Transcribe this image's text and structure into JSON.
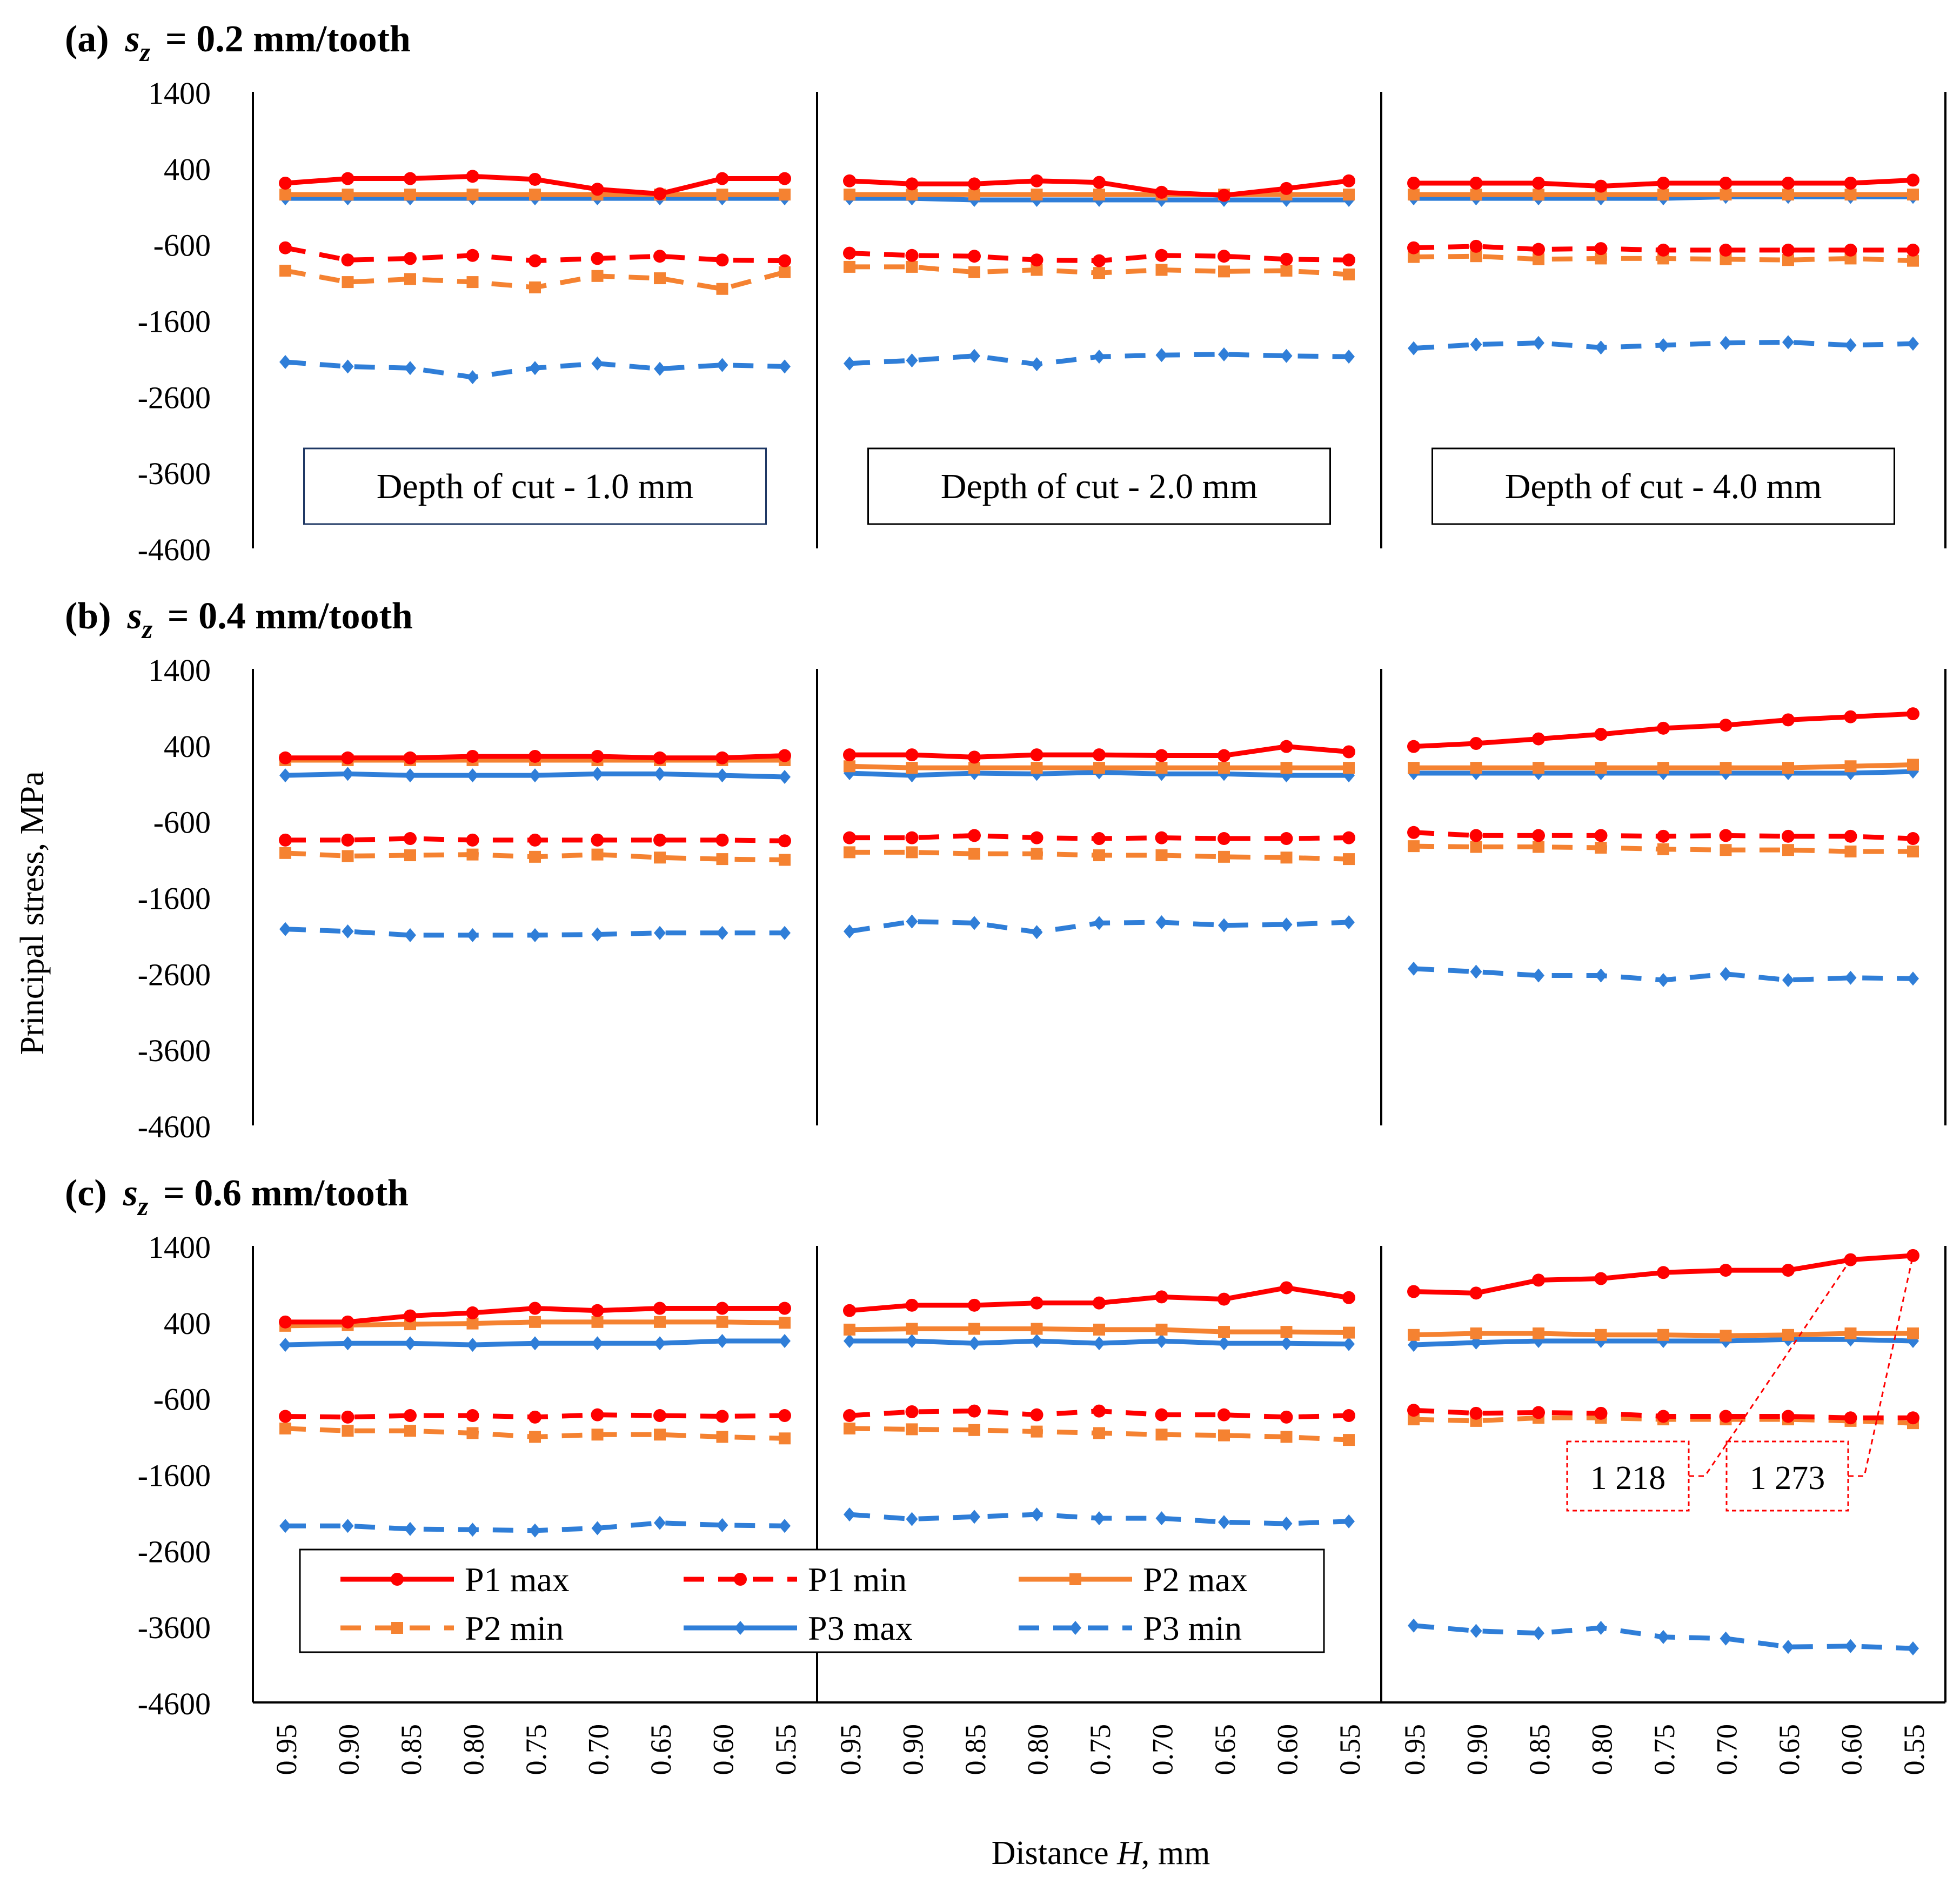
{
  "chart_data": {
    "type": "line",
    "title": "",
    "ylabel": "Principal stress, MPa",
    "xlabel_prefix": "Distance ",
    "xlabel_var": "H",
    "xlabel_suffix": ", mm",
    "ylim": [
      -4600,
      1400
    ],
    "yticks": [
      1400,
      400,
      -600,
      -1600,
      -2600,
      -3600,
      -4600
    ],
    "x": [
      "0.95",
      "0.90",
      "0.85",
      "0.80",
      "0.75",
      "0.70",
      "0.65",
      "0.60",
      "0.55"
    ],
    "depth_labels": [
      "Depth of cut - 1.0 mm",
      "Depth of cut - 2.0 mm",
      "Depth of cut - 4.0 mm"
    ],
    "colors": {
      "red": "#ff0000",
      "orange": "#f58231",
      "blue": "#2f7ed8",
      "axis": "#000000"
    },
    "legend": {
      "position": "bottom-left of panel (c)",
      "entries": [
        {
          "key": "P1max",
          "label": "P1 max",
          "color": "#ff0000",
          "dash": "solid",
          "marker": "circle"
        },
        {
          "key": "P1min",
          "label": "P1 min",
          "color": "#ff0000",
          "dash": "dashed",
          "marker": "circle"
        },
        {
          "key": "P2max",
          "label": "P2 max",
          "color": "#f58231",
          "dash": "solid",
          "marker": "square"
        },
        {
          "key": "P2min",
          "label": "P2 min",
          "color": "#f58231",
          "dash": "dashed",
          "marker": "square"
        },
        {
          "key": "P3max",
          "label": "P3 max",
          "color": "#2f7ed8",
          "dash": "solid",
          "marker": "diamond"
        },
        {
          "key": "P3min",
          "label": "P3 min",
          "color": "#2f7ed8",
          "dash": "dashed",
          "marker": "diamond"
        }
      ]
    },
    "panels": [
      {
        "label": "(a)",
        "sz_symbol": "s",
        "sz_sub": "z",
        "sz_text": " = 0.2 mm/tooth",
        "groups": [
          {
            "P1max": [
              200,
              260,
              260,
              290,
              250,
              120,
              60,
              260,
              260
            ],
            "P1min": [
              -650,
              -810,
              -790,
              -750,
              -820,
              -790,
              -760,
              -810,
              -820
            ],
            "P2max": [
              50,
              50,
              50,
              50,
              50,
              50,
              50,
              50,
              50
            ],
            "P2min": [
              -950,
              -1100,
              -1060,
              -1100,
              -1170,
              -1020,
              -1050,
              -1190,
              -970
            ],
            "P3max": [
              0,
              0,
              0,
              0,
              0,
              0,
              0,
              0,
              0
            ],
            "P3min": [
              -2150,
              -2210,
              -2230,
              -2350,
              -2230,
              -2170,
              -2240,
              -2190,
              -2210
            ]
          },
          {
            "P1max": [
              230,
              190,
              190,
              230,
              210,
              80,
              40,
              130,
              230
            ],
            "P1min": [
              -720,
              -750,
              -760,
              -810,
              -820,
              -750,
              -760,
              -800,
              -810
            ],
            "P2max": [
              50,
              50,
              50,
              50,
              50,
              50,
              50,
              50,
              50
            ],
            "P2min": [
              -900,
              -900,
              -970,
              -940,
              -980,
              -940,
              -960,
              -950,
              -1000
            ],
            "P3max": [
              0,
              0,
              -20,
              -20,
              -20,
              -20,
              -20,
              -20,
              -20
            ],
            "P3min": [
              -2170,
              -2130,
              -2070,
              -2180,
              -2080,
              -2060,
              -2050,
              -2070,
              -2080
            ]
          },
          {
            "P1max": [
              200,
              200,
              200,
              160,
              200,
              200,
              200,
              200,
              240
            ],
            "P1min": [
              -650,
              -630,
              -670,
              -660,
              -680,
              -680,
              -680,
              -680,
              -680
            ],
            "P2max": [
              50,
              50,
              50,
              50,
              50,
              50,
              50,
              50,
              50
            ],
            "P2min": [
              -770,
              -760,
              -800,
              -790,
              -790,
              -800,
              -810,
              -790,
              -820
            ],
            "P3max": [
              0,
              0,
              0,
              0,
              0,
              20,
              20,
              20,
              20
            ],
            "P3min": [
              -1970,
              -1920,
              -1900,
              -1960,
              -1930,
              -1900,
              -1890,
              -1930,
              -1910
            ]
          }
        ]
      },
      {
        "label": "(b)",
        "sz_symbol": "s",
        "sz_sub": "z",
        "sz_text": " = 0.4 mm/tooth",
        "groups": [
          {
            "P1max": [
              230,
              230,
              230,
              250,
              250,
              250,
              230,
              230,
              260
            ],
            "P1min": [
              -850,
              -850,
              -830,
              -850,
              -850,
              -850,
              -850,
              -850,
              -860
            ],
            "P2max": [
              200,
              200,
              200,
              200,
              200,
              200,
              200,
              200,
              200
            ],
            "P2min": [
              -1020,
              -1060,
              -1050,
              -1040,
              -1070,
              -1040,
              -1080,
              -1100,
              -1110
            ],
            "P3max": [
              0,
              20,
              0,
              0,
              0,
              20,
              20,
              0,
              -20
            ],
            "P3min": [
              -2020,
              -2050,
              -2100,
              -2100,
              -2100,
              -2090,
              -2070,
              -2070,
              -2070
            ]
          },
          {
            "P1max": [
              270,
              270,
              240,
              270,
              270,
              260,
              260,
              380,
              310
            ],
            "P1min": [
              -820,
              -820,
              -790,
              -820,
              -830,
              -820,
              -830,
              -830,
              -820
            ],
            "P2max": [
              120,
              100,
              100,
              100,
              100,
              100,
              100,
              100,
              100
            ],
            "P2min": [
              -1010,
              -1010,
              -1030,
              -1030,
              -1050,
              -1050,
              -1070,
              -1080,
              -1100
            ],
            "P3max": [
              30,
              0,
              30,
              20,
              40,
              20,
              20,
              0,
              0
            ],
            "P3min": [
              -2050,
              -1920,
              -1940,
              -2060,
              -1940,
              -1930,
              -1970,
              -1960,
              -1930
            ]
          },
          {
            "P1max": [
              380,
              420,
              480,
              540,
              620,
              660,
              730,
              770,
              810
            ],
            "P1min": [
              -750,
              -790,
              -790,
              -790,
              -800,
              -790,
              -800,
              -800,
              -830
            ],
            "P2max": [
              100,
              100,
              100,
              100,
              100,
              100,
              100,
              120,
              140
            ],
            "P2min": [
              -930,
              -940,
              -940,
              -950,
              -970,
              -980,
              -980,
              -1000,
              -1000
            ],
            "P3max": [
              30,
              30,
              30,
              30,
              30,
              30,
              30,
              30,
              50
            ],
            "P3min": [
              -2540,
              -2580,
              -2630,
              -2630,
              -2690,
              -2610,
              -2690,
              -2660,
              -2670
            ]
          }
        ]
      },
      {
        "label": "(c)",
        "sz_symbol": "s",
        "sz_sub": "z",
        "sz_text": " = 0.6 mm/tooth",
        "groups": [
          {
            "P1max": [
              400,
              400,
              480,
              520,
              580,
              550,
              580,
              580,
              580
            ],
            "P1min": [
              -840,
              -850,
              -830,
              -830,
              -850,
              -820,
              -830,
              -840,
              -830
            ],
            "P2max": [
              350,
              360,
              370,
              380,
              400,
              400,
              400,
              400,
              390
            ],
            "P2min": [
              -1000,
              -1030,
              -1030,
              -1060,
              -1110,
              -1080,
              -1080,
              -1110,
              -1130
            ],
            "P3max": [
              100,
              120,
              120,
              100,
              120,
              120,
              120,
              150,
              150
            ],
            "P3min": [
              -2280,
              -2280,
              -2320,
              -2330,
              -2340,
              -2310,
              -2240,
              -2270,
              -2280
            ]
          },
          {
            "P1max": [
              550,
              620,
              620,
              650,
              650,
              730,
              700,
              850,
              720
            ],
            "P1min": [
              -830,
              -780,
              -770,
              -820,
              -770,
              -820,
              -820,
              -850,
              -830
            ],
            "P2max": [
              300,
              310,
              310,
              310,
              300,
              300,
              270,
              270,
              260
            ],
            "P2min": [
              -1000,
              -1010,
              -1020,
              -1040,
              -1060,
              -1080,
              -1090,
              -1110,
              -1150
            ],
            "P3max": [
              150,
              150,
              120,
              150,
              120,
              150,
              120,
              120,
              110
            ],
            "P3min": [
              -2130,
              -2190,
              -2160,
              -2130,
              -2180,
              -2180,
              -2230,
              -2250,
              -2220
            ]
          },
          {
            "P1max": [
              800,
              780,
              950,
              970,
              1050,
              1080,
              1080,
              1218,
              1273
            ],
            "P1min": [
              -760,
              -800,
              -790,
              -800,
              -840,
              -840,
              -840,
              -860,
              -860
            ],
            "P2max": [
              230,
              250,
              250,
              230,
              230,
              220,
              230,
              250,
              250
            ],
            "P2min": [
              -880,
              -900,
              -860,
              -860,
              -880,
              -880,
              -880,
              -900,
              -930
            ],
            "P3max": [
              100,
              130,
              150,
              150,
              150,
              150,
              170,
              170,
              150
            ],
            "P3min": [
              -3590,
              -3660,
              -3690,
              -3620,
              -3740,
              -3760,
              -3870,
              -3860,
              -3890
            ]
          }
        ]
      }
    ],
    "annotations": [
      {
        "panel": 2,
        "group": 2,
        "point": 7,
        "value": 1218,
        "text": "1 218"
      },
      {
        "panel": 2,
        "group": 2,
        "point": 8,
        "value": 1273,
        "text": "1 273"
      }
    ]
  }
}
